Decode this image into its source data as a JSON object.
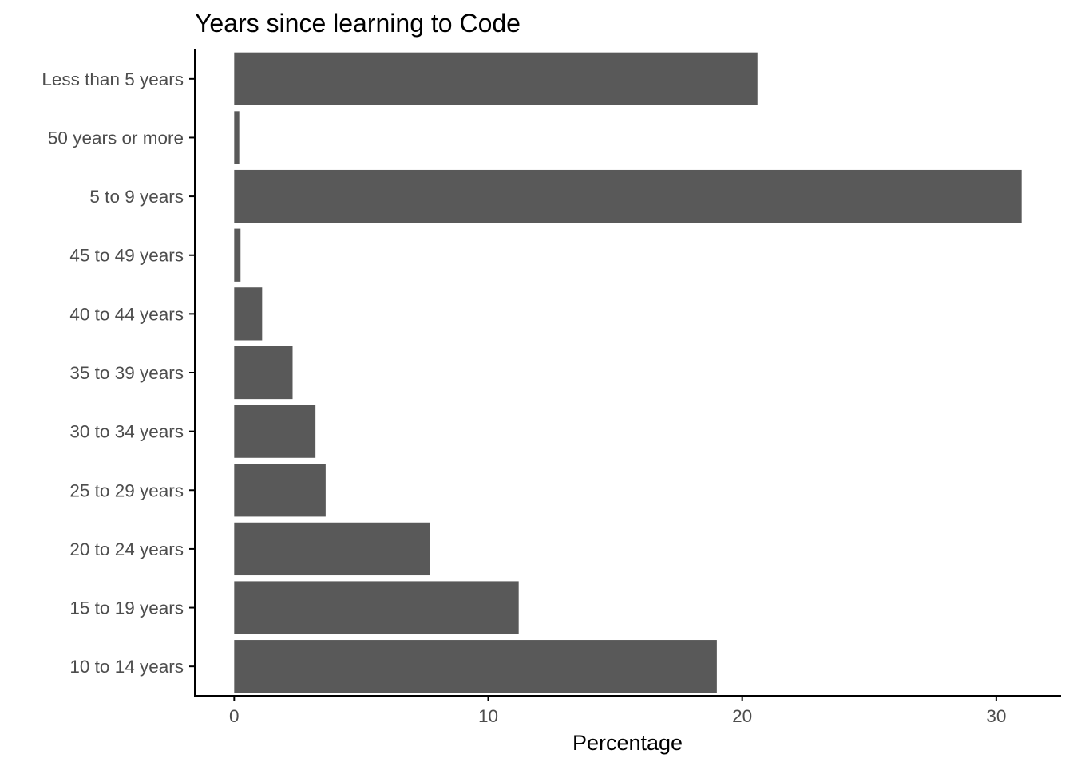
{
  "chart_data": {
    "type": "bar",
    "orientation": "horizontal",
    "title": "Years since learning to Code",
    "xlabel": "Percentage",
    "ylabel": "",
    "categories": [
      "10 to 14 years",
      "15 to 19 years",
      "20 to 24 years",
      "25 to 29 years",
      "30 to 34 years",
      "35 to 39 years",
      "40 to 44 years",
      "45 to 49 years",
      "5 to 9 years",
      "50 years or more",
      "Less than 5 years"
    ],
    "values": [
      19.0,
      11.2,
      7.7,
      3.6,
      3.2,
      2.3,
      1.1,
      0.25,
      31.0,
      0.2,
      20.6
    ],
    "xlim": [
      -1.55,
      32.55
    ],
    "xticks": [
      0,
      10,
      20,
      30
    ],
    "xtick_labels": [
      "0",
      "10",
      "20",
      "30"
    ],
    "bar_color": "#595959",
    "grid": false,
    "legend": "none"
  }
}
